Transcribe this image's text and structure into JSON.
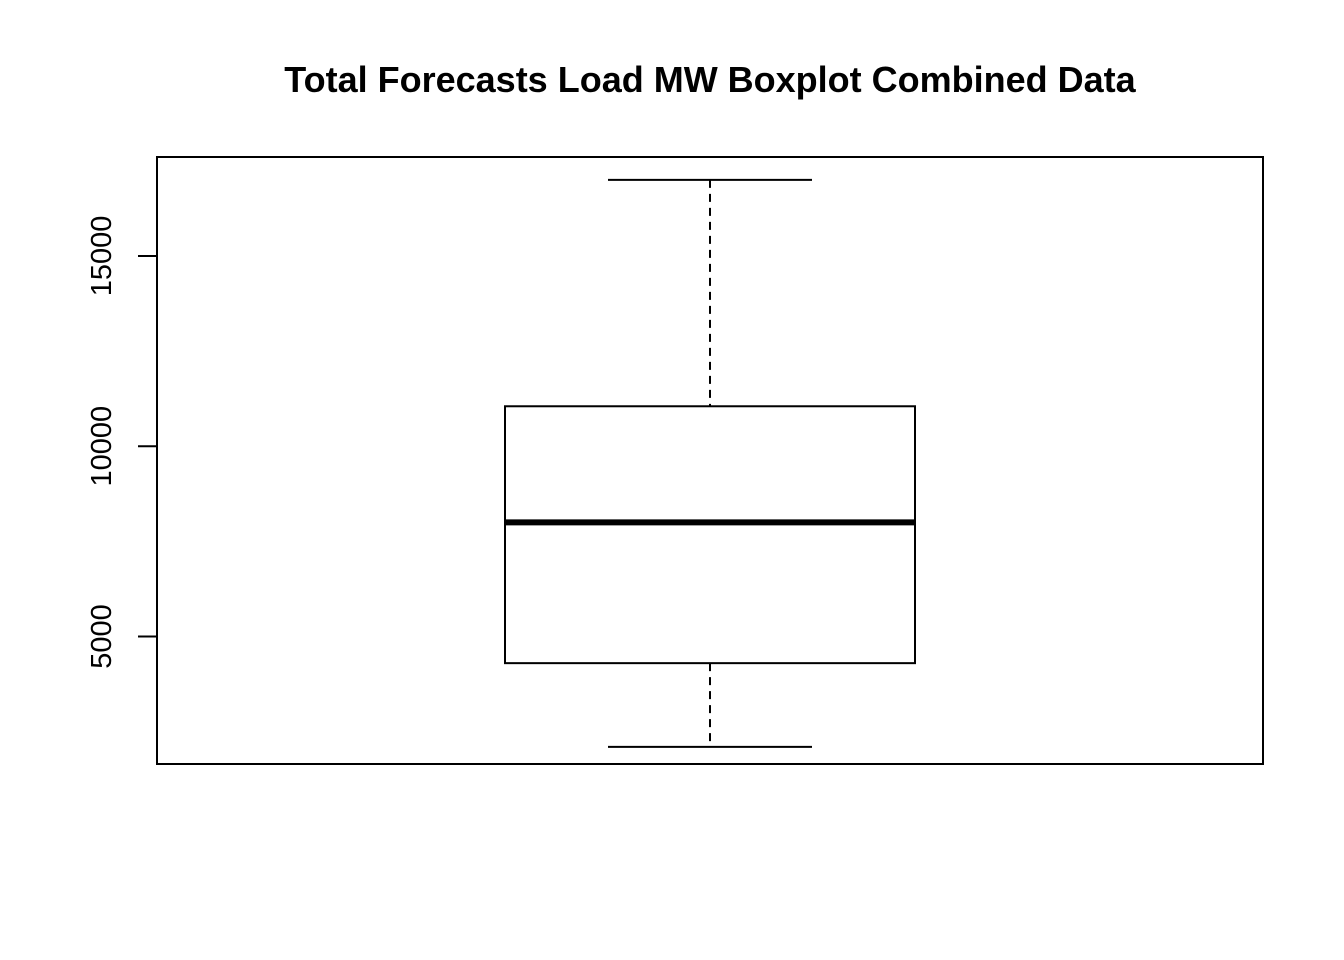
{
  "chart_data": {
    "type": "boxplot",
    "title": "Total Forecasts Load MW Boxplot Combined Data",
    "xlabel": "",
    "ylabel": "",
    "ylim": [
      1650,
      17600
    ],
    "yticks": [
      5000,
      10000,
      15000
    ],
    "ytick_labels": [
      "5000",
      "10000",
      "15000"
    ],
    "grid": false,
    "legend": "none",
    "boxes": [
      {
        "whisker_low": 2100,
        "q1": 4300,
        "median": 8000,
        "q3": 11050,
        "whisker_high": 17000
      }
    ],
    "colors": {
      "line": "#000000",
      "fill": "#ffffff",
      "background": "#ffffff"
    }
  }
}
